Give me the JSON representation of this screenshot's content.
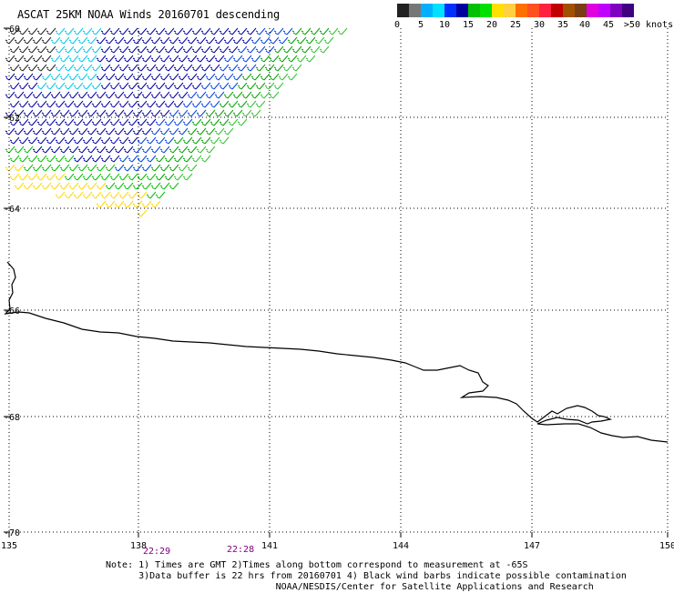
{
  "title": "ASCAT 25KM NOAA Winds 20160701 descending",
  "legend": {
    "colors": [
      "#222222",
      "#777777",
      "#00b0ff",
      "#00e0ff",
      "#0030ff",
      "#0000a0",
      "#00c000",
      "#00e000",
      "#ffe000",
      "#ffd040",
      "#ff7000",
      "#ff5020",
      "#ff2040",
      "#c00000",
      "#a05000",
      "#7a3c14",
      "#e000e0",
      "#c000ff",
      "#8000c0",
      "#400080"
    ],
    "labels": [
      "0",
      "5",
      "10",
      "15",
      "20",
      "25",
      "30",
      "35",
      "40",
      "45",
      ">50 knots"
    ]
  },
  "axes": {
    "lat_labels": [
      "-60",
      "-62",
      "-64",
      "-66",
      "-68",
      "-70"
    ],
    "lon_labels": [
      "135",
      "138",
      "141",
      "144",
      "147",
      "150"
    ]
  },
  "time_labels": [
    "22:29",
    "22:28"
  ],
  "note_lines": [
    "Note: 1) Times are GMT 2)Times along bottom correspond to measurement at -65S",
    "      3)Data buffer is 22 hrs from 20160701 4) Black wind barbs indicate possible contamination",
    "                               NOAA/NESDIS/Center for Satellite Applications and Research"
  ]
}
